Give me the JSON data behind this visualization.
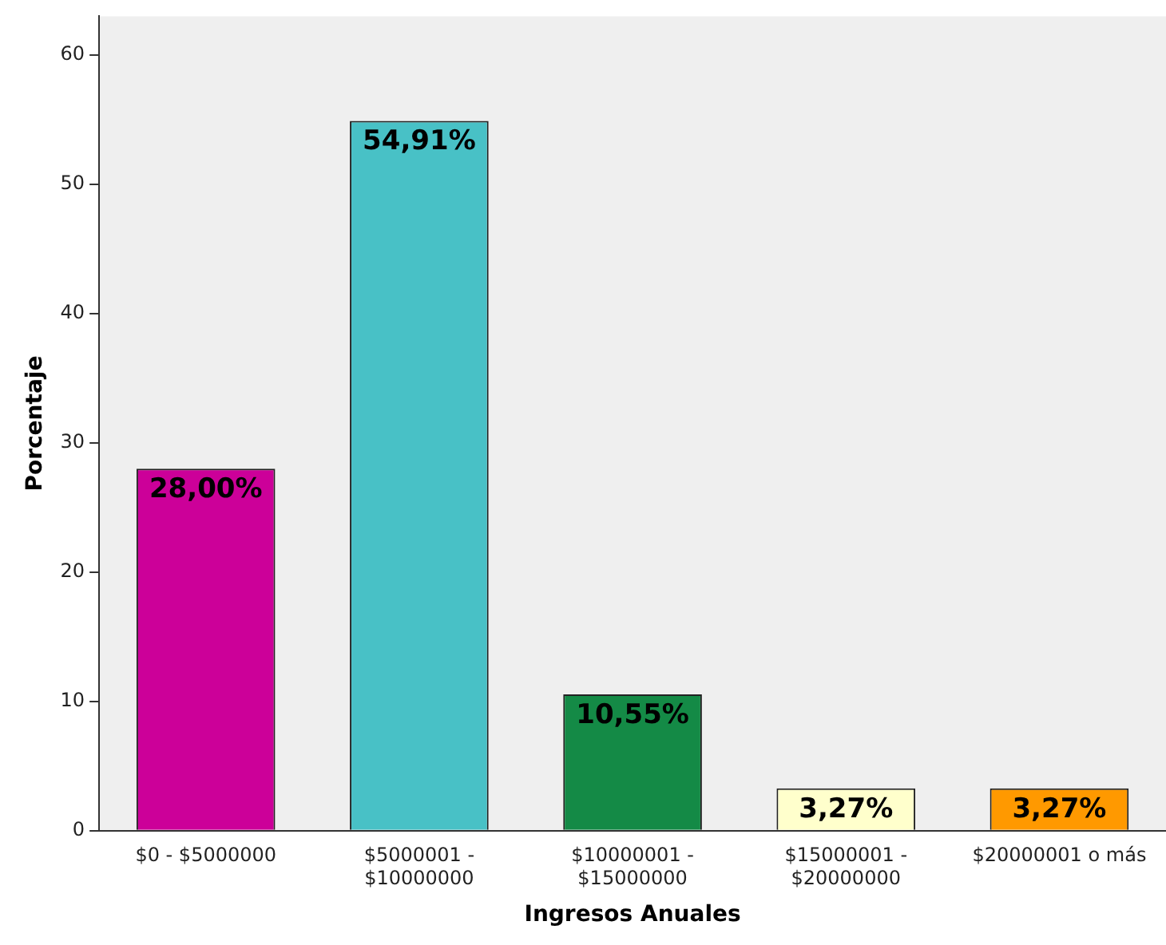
{
  "chart_data": {
    "type": "bar",
    "xlabel": "Ingresos Anuales",
    "ylabel": "Porcentaje",
    "categories": [
      "$0 - $5000000",
      "$5000001 -\n$10000000",
      "$10000001 -\n$15000000",
      "$15000001 -\n$20000000",
      "$20000001 o más"
    ],
    "values": [
      28.0,
      54.91,
      10.55,
      3.27,
      3.27
    ],
    "colors": [
      "#cc0099",
      "#48c1c6",
      "#148a46",
      "#ffffcc",
      "#ff9900"
    ],
    "value_labels": [
      "28,00%",
      "54,91%",
      "10,55%",
      "3,27%",
      "3,27%"
    ],
    "ylim": [
      0,
      63
    ],
    "yticks": [
      0,
      10,
      20,
      30,
      40,
      50,
      60
    ],
    "grid": false,
    "legend": false
  }
}
